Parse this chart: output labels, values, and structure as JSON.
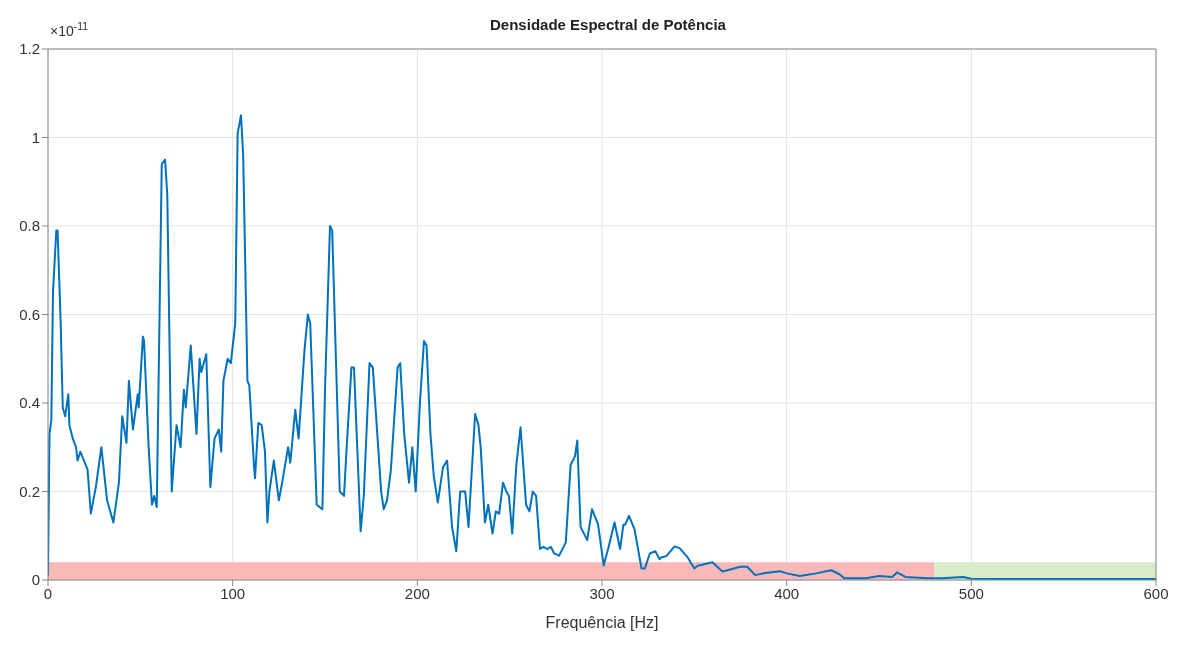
{
  "chart_data": {
    "type": "line",
    "title": "Densidade Espectral de Potência",
    "xlabel": "Frequência [Hz]",
    "annotations": [
      "×10$^{-11}$"
    ],
    "xlim": [
      0,
      600
    ],
    "xticks": [
      0,
      100,
      200,
      300,
      400,
      500,
      600
    ],
    "ylim": [
      0,
      1.2
    ],
    "yticks": [
      0,
      0.2,
      0.4,
      0.6,
      0.8,
      1,
      1.2
    ],
    "grid": true,
    "legend": false,
    "marker": "none",
    "line_style": "solid",
    "series": [
      {
        "type": "area",
        "color": "#f9b9b9",
        "x": [
          0,
          480
        ],
        "values": [
          0.04,
          0.04
        ]
      },
      {
        "type": "area",
        "color": "#d9ecc9",
        "x": [
          480,
          600
        ],
        "values": [
          0.04,
          0.04
        ]
      },
      {
        "color": "#0072bd",
        "x": [
          0,
          0.8,
          1.8,
          2.7,
          4.5,
          5.2,
          6.8,
          8,
          9.3,
          11,
          11.6,
          13.4,
          15.2,
          16,
          17.5,
          21.4,
          23.2,
          25.9,
          28.9,
          32,
          35.4,
          38.4,
          40.2,
          42.5,
          43.8,
          46,
          48.6,
          49.1,
          51.4,
          52,
          54.5,
          56.3,
          57.5,
          58.9,
          61.6,
          63.4,
          64.6,
          67,
          69.6,
          71.8,
          73.6,
          74.6,
          77.3,
          80.4,
          82.1,
          83,
          85.7,
          87.9,
          90.2,
          92.5,
          93.8,
          95,
          97.3,
          99,
          101.4,
          102.7,
          104.5,
          105.7,
          108,
          109,
          111.6,
          112.1,
          113.9,
          115.7,
          117.5,
          118.8,
          119.9,
          122.3,
          125,
          126.8,
          130,
          131.2,
          133.9,
          135.7,
          138.9,
          140.7,
          142,
          145.5,
          148.6,
          150,
          152.7,
          153.9,
          158,
          160.3,
          161.6,
          164.3,
          165.7,
          169.3,
          171,
          174.1,
          175.9,
          180.4,
          181.8,
          183.6,
          185.7,
          189.3,
          190.7,
          192.9,
          195.5,
          197.3,
          199.1,
          201.4,
          203.6,
          205,
          207.1,
          208.9,
          211.1,
          213.9,
          216.1,
          218.8,
          221.1,
          223.2,
          225.9,
          227.7,
          231.3,
          233.1,
          234.3,
          236.6,
          238.4,
          240.7,
          242.5,
          244.3,
          246.4,
          248.2,
          249.6,
          251.4,
          253.6,
          255.9,
          258.9,
          260.7,
          262.5,
          264.3,
          266.4,
          268.2,
          270.5,
          272.3,
          274.1,
          276.8,
          280.4,
          283,
          285.4,
          286.6,
          288.4,
          292,
          294.6,
          297.9,
          300.9,
          303.6,
          306.8,
          309.8,
          311.6,
          312.5,
          314.6,
          317.6,
          321.4,
          323.2,
          325.9,
          328.9,
          331.2,
          332.1,
          334.8,
          339.3,
          342,
          346.4,
          350,
          351.8,
          359.8,
          365.2,
          368.8,
          375,
          378.6,
          383,
          388.4,
          396.4,
          400,
          407.1,
          416,
          424.1,
          428.6,
          431.2,
          442.9,
          450,
          457.1,
          459.8,
          464.3,
          476.8,
          484,
          495.6,
          500,
          517.9,
          553.6,
          594.6,
          600
        ],
        "values": [
          0.01,
          0.33,
          0.36,
          0.65,
          0.79,
          0.79,
          0.59,
          0.39,
          0.37,
          0.42,
          0.35,
          0.32,
          0.3,
          0.27,
          0.29,
          0.25,
          0.15,
          0.21,
          0.3,
          0.18,
          0.13,
          0.22,
          0.37,
          0.31,
          0.45,
          0.34,
          0.42,
          0.39,
          0.55,
          0.54,
          0.3,
          0.17,
          0.19,
          0.165,
          0.94,
          0.95,
          0.87,
          0.2,
          0.35,
          0.3,
          0.43,
          0.39,
          0.53,
          0.33,
          0.5,
          0.47,
          0.51,
          0.21,
          0.32,
          0.34,
          0.29,
          0.45,
          0.5,
          0.49,
          0.58,
          1.01,
          1.05,
          0.96,
          0.45,
          0.44,
          0.255,
          0.23,
          0.355,
          0.35,
          0.29,
          0.13,
          0.2,
          0.27,
          0.18,
          0.22,
          0.3,
          0.265,
          0.385,
          0.32,
          0.52,
          0.6,
          0.58,
          0.17,
          0.16,
          0.43,
          0.8,
          0.79,
          0.2,
          0.19,
          0.29,
          0.48,
          0.48,
          0.11,
          0.19,
          0.49,
          0.48,
          0.2,
          0.16,
          0.18,
          0.25,
          0.48,
          0.49,
          0.33,
          0.22,
          0.3,
          0.2,
          0.4,
          0.54,
          0.53,
          0.33,
          0.235,
          0.175,
          0.255,
          0.27,
          0.12,
          0.065,
          0.2,
          0.2,
          0.12,
          0.375,
          0.35,
          0.3,
          0.13,
          0.17,
          0.105,
          0.155,
          0.15,
          0.22,
          0.2,
          0.19,
          0.105,
          0.26,
          0.345,
          0.17,
          0.155,
          0.2,
          0.19,
          0.07,
          0.075,
          0.07,
          0.075,
          0.06,
          0.055,
          0.085,
          0.26,
          0.28,
          0.315,
          0.12,
          0.09,
          0.16,
          0.125,
          0.033,
          0.075,
          0.13,
          0.07,
          0.125,
          0.125,
          0.145,
          0.115,
          0.026,
          0.026,
          0.06,
          0.065,
          0.047,
          0.051,
          0.054,
          0.076,
          0.072,
          0.051,
          0.026,
          0.032,
          0.04,
          0.019,
          0.023,
          0.03,
          0.03,
          0.011,
          0.016,
          0.02,
          0.015,
          0.009,
          0.015,
          0.022,
          0.013,
          0.004,
          0.004,
          0.009,
          0.007,
          0.017,
          0.007,
          0.004,
          0.004,
          0.007,
          0.003,
          0.002,
          0.002,
          0.002,
          0.002
        ]
      }
    ]
  }
}
